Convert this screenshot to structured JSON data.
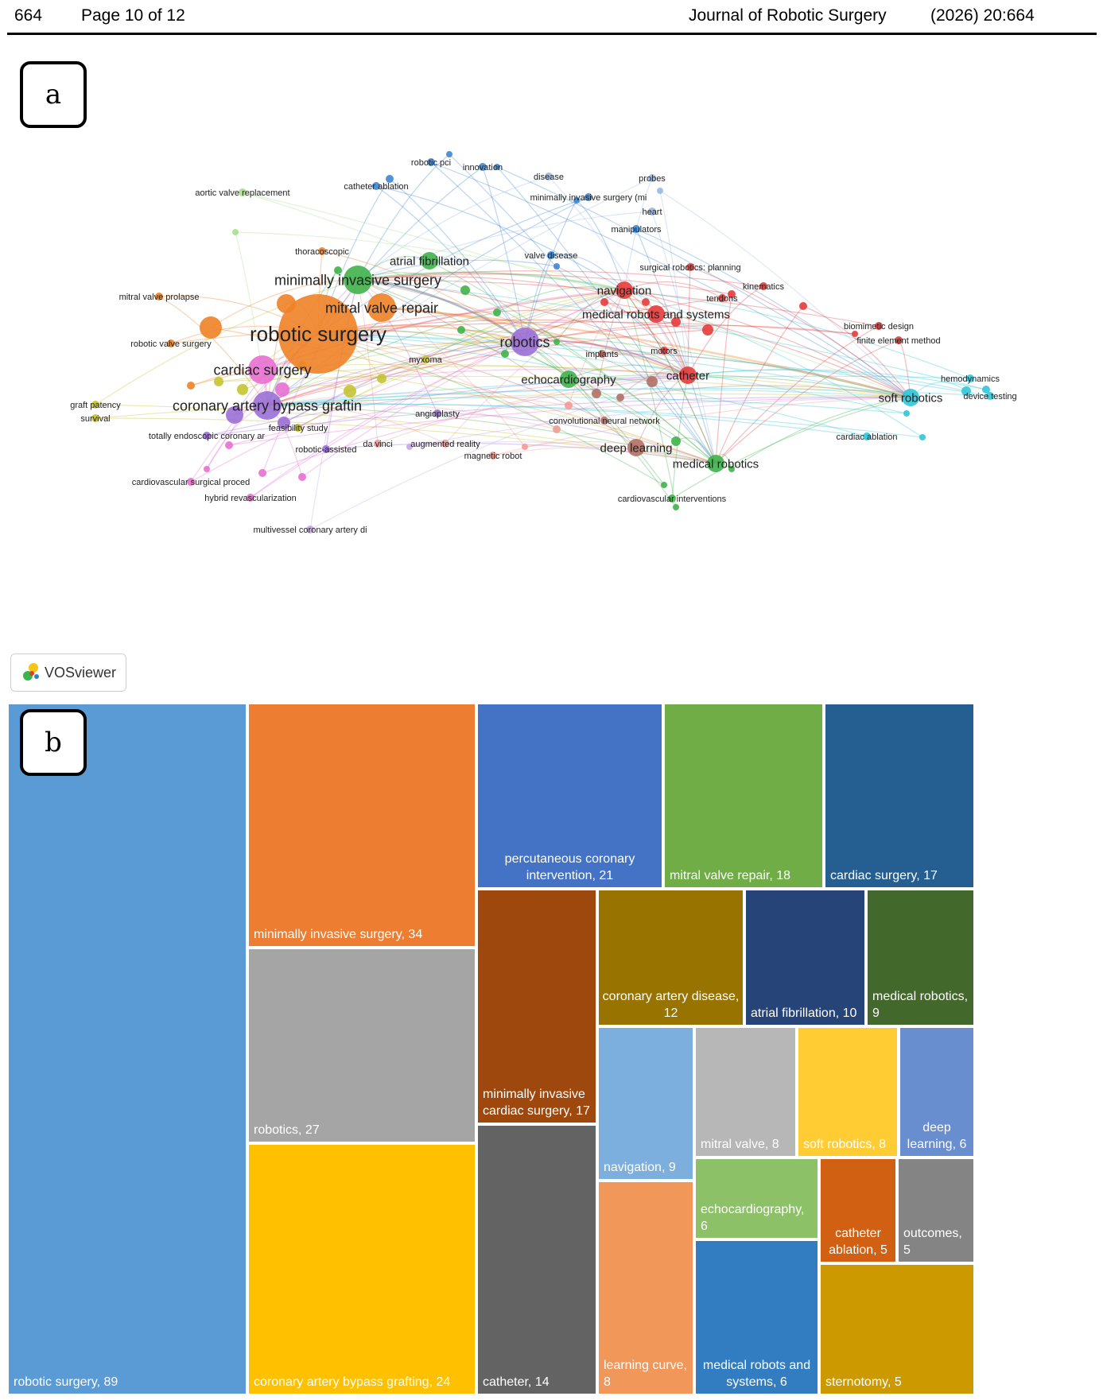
{
  "header": {
    "article_number": "664",
    "page_info": "Page 10 of 12",
    "journal": "Journal of Robotic Surgery",
    "citation": "(2026) 20:664"
  },
  "panel_a": {
    "label": "a",
    "software_badge": "VOSviewer",
    "clusters": {
      "red": "#e63b3b",
      "green": "#3fb34a",
      "blue": "#3f86d4",
      "yellow": "#c4c431",
      "purple": "#9b6fd6",
      "cyan": "#2fc6d9",
      "orange": "#ef8227",
      "brown": "#b27065",
      "pink": "#e86fd0",
      "lightblue": "#9ab8e8",
      "lightgreen": "#a6e08c",
      "lightred": "#f29a96",
      "lightpurple": "#c7a6e8"
    },
    "nodes": [
      {
        "label": "robotic surgery",
        "cluster": "orange",
        "weight": 89,
        "size": "xl"
      },
      {
        "label": "minimally invasive surgery",
        "cluster": "green",
        "weight": 34,
        "size": "l"
      },
      {
        "label": "mitral valve repair",
        "cluster": "orange",
        "weight": 18,
        "size": "l"
      },
      {
        "label": "robotics",
        "cluster": "purple",
        "weight": 27,
        "size": "l"
      },
      {
        "label": "cardiac surgery",
        "cluster": "pink",
        "weight": 17,
        "size": "l"
      },
      {
        "label": "coronary artery bypass graftin",
        "cluster": "purple",
        "weight": 24,
        "size": "l"
      },
      {
        "label": "atrial fibrillation",
        "cluster": "green",
        "weight": 10,
        "size": "m"
      },
      {
        "label": "navigation",
        "cluster": "red",
        "weight": 9,
        "size": "m"
      },
      {
        "label": "medical robots and systems",
        "cluster": "red",
        "weight": 6,
        "size": "m"
      },
      {
        "label": "catheter",
        "cluster": "red",
        "weight": 14,
        "size": "m"
      },
      {
        "label": "echocardiography",
        "cluster": "green",
        "weight": 6,
        "size": "m"
      },
      {
        "label": "deep learning",
        "cluster": "brown",
        "weight": 6,
        "size": "m"
      },
      {
        "label": "medical robotics",
        "cluster": "green",
        "weight": 9,
        "size": "m"
      },
      {
        "label": "soft robotics",
        "cluster": "cyan",
        "weight": 8,
        "size": "m"
      },
      {
        "label": "angioplasty",
        "cluster": "purple",
        "weight": 5,
        "size": "s"
      },
      {
        "label": "robotic pci",
        "cluster": "blue",
        "weight": 3,
        "size": "s"
      },
      {
        "label": "innovation",
        "cluster": "blue",
        "weight": 2,
        "size": "s"
      },
      {
        "label": "catheter ablation",
        "cluster": "blue",
        "weight": 5,
        "size": "s"
      },
      {
        "label": "aortic valve replacement",
        "cluster": "lightgreen",
        "weight": 2,
        "size": "s"
      },
      {
        "label": "disease",
        "cluster": "lightblue",
        "weight": 2,
        "size": "s"
      },
      {
        "label": "probes",
        "cluster": "lightblue",
        "weight": 2,
        "size": "s"
      },
      {
        "label": "minimally invasive surgery (mi",
        "cluster": "blue",
        "weight": 2,
        "size": "s"
      },
      {
        "label": "heart",
        "cluster": "lightblue",
        "weight": 2,
        "size": "s"
      },
      {
        "label": "manipulators",
        "cluster": "blue",
        "weight": 2,
        "size": "s"
      },
      {
        "label": "thoracoscopic",
        "cluster": "orange",
        "weight": 2,
        "size": "s"
      },
      {
        "label": "valve disease",
        "cluster": "blue",
        "weight": 2,
        "size": "s"
      },
      {
        "label": "surgical robotics: planning",
        "cluster": "red",
        "weight": 2,
        "size": "s"
      },
      {
        "label": "kinematics",
        "cluster": "red",
        "weight": 2,
        "size": "s"
      },
      {
        "label": "tendons",
        "cluster": "red",
        "weight": 2,
        "size": "s"
      },
      {
        "label": "mitral valve prolapse",
        "cluster": "orange",
        "weight": 2,
        "size": "s"
      },
      {
        "label": "biomimetic design",
        "cluster": "red",
        "weight": 2,
        "size": "s"
      },
      {
        "label": "finite element method",
        "cluster": "red",
        "weight": 2,
        "size": "s"
      },
      {
        "label": "robotic valve surgery",
        "cluster": "orange",
        "weight": 3,
        "size": "s"
      },
      {
        "label": "myxoma",
        "cluster": "yellow",
        "weight": 3,
        "size": "s"
      },
      {
        "label": "implants",
        "cluster": "brown",
        "weight": 2,
        "size": "s"
      },
      {
        "label": "motors",
        "cluster": "red",
        "weight": 2,
        "size": "s"
      },
      {
        "label": "hemodynamics",
        "cluster": "cyan",
        "weight": 2,
        "size": "s"
      },
      {
        "label": "device testing",
        "cluster": "cyan",
        "weight": 2,
        "size": "s"
      },
      {
        "label": "graft patency",
        "cluster": "yellow",
        "weight": 2,
        "size": "s"
      },
      {
        "label": "survival",
        "cluster": "yellow",
        "weight": 2,
        "size": "s"
      },
      {
        "label": "convolutional neural network",
        "cluster": "brown",
        "weight": 2,
        "size": "s"
      },
      {
        "label": "feasibility study",
        "cluster": "yellow",
        "weight": 2,
        "size": "s"
      },
      {
        "label": "totally endoscopic coronary ar",
        "cluster": "purple",
        "weight": 2,
        "size": "s"
      },
      {
        "label": "da vinci",
        "cluster": "lightred",
        "weight": 2,
        "size": "s"
      },
      {
        "label": "augmented reality",
        "cluster": "lightred",
        "weight": 2,
        "size": "s"
      },
      {
        "label": "cardiac ablation",
        "cluster": "cyan",
        "weight": 2,
        "size": "s"
      },
      {
        "label": "robotic-assisted",
        "cluster": "purple",
        "weight": 2,
        "size": "s"
      },
      {
        "label": "magnetic robot",
        "cluster": "lightred",
        "weight": 2,
        "size": "s"
      },
      {
        "label": "cardiovascular surgical proced",
        "cluster": "pink",
        "weight": 2,
        "size": "s"
      },
      {
        "label": "hybrid revascularization",
        "cluster": "pink",
        "weight": 2,
        "size": "s"
      },
      {
        "label": "cardiovascular interventions",
        "cluster": "green",
        "weight": 2,
        "size": "s"
      },
      {
        "label": "multivessel coronary artery di",
        "cluster": "lightpurple",
        "weight": 2,
        "size": "s"
      }
    ]
  },
  "panel_b": {
    "label": "b",
    "chart_data": {
      "type": "treemap",
      "items": [
        {
          "label": "robotic surgery, 89",
          "value": 89,
          "color": "#5b9bd5"
        },
        {
          "label": "minimally invasive surgery, 34",
          "value": 34,
          "color": "#ed7d31"
        },
        {
          "label": "robotics, 27",
          "value": 27,
          "color": "#a5a5a5"
        },
        {
          "label": "coronary artery bypass grafting, 24",
          "value": 24,
          "color": "#ffc000"
        },
        {
          "label": "percutaneous coronary intervention, 21",
          "value": 21,
          "color": "#4472c4"
        },
        {
          "label": "mitral valve repair, 18",
          "value": 18,
          "color": "#70ad47"
        },
        {
          "label": "cardiac surgery, 17",
          "value": 17,
          "color": "#255e91"
        },
        {
          "label": "minimally invasive cardiac surgery, 17",
          "value": 17,
          "color": "#9e480e"
        },
        {
          "label": "coronary artery disease, 12",
          "value": 12,
          "color": "#997300"
        },
        {
          "label": "atrial fibrillation, 10",
          "value": 10,
          "color": "#264478"
        },
        {
          "label": "medical robotics, 9",
          "value": 9,
          "color": "#43682b"
        },
        {
          "label": "catheter, 14",
          "value": 14,
          "color": "#636363"
        },
        {
          "label": "navigation, 9",
          "value": 9,
          "color": "#7cafdd"
        },
        {
          "label": "mitral valve, 8",
          "value": 8,
          "color": "#b7b7b7"
        },
        {
          "label": "soft robotics, 8",
          "value": 8,
          "color": "#ffcd33"
        },
        {
          "label": "deep learning, 6",
          "value": 6,
          "color": "#698ed0"
        },
        {
          "label": "learning curve, 8",
          "value": 8,
          "color": "#f1975a"
        },
        {
          "label": "echocardiography, 6",
          "value": 6,
          "color": "#8cc168"
        },
        {
          "label": "catheter ablation, 5",
          "value": 5,
          "color": "#d26012"
        },
        {
          "label": "outcomes, 5",
          "value": 5,
          "color": "#848484"
        },
        {
          "label": "medical robots and systems, 6",
          "value": 6,
          "color": "#327dc2"
        },
        {
          "label": "sternotomy, 5",
          "value": 5,
          "color": "#cc9a00"
        }
      ]
    }
  }
}
